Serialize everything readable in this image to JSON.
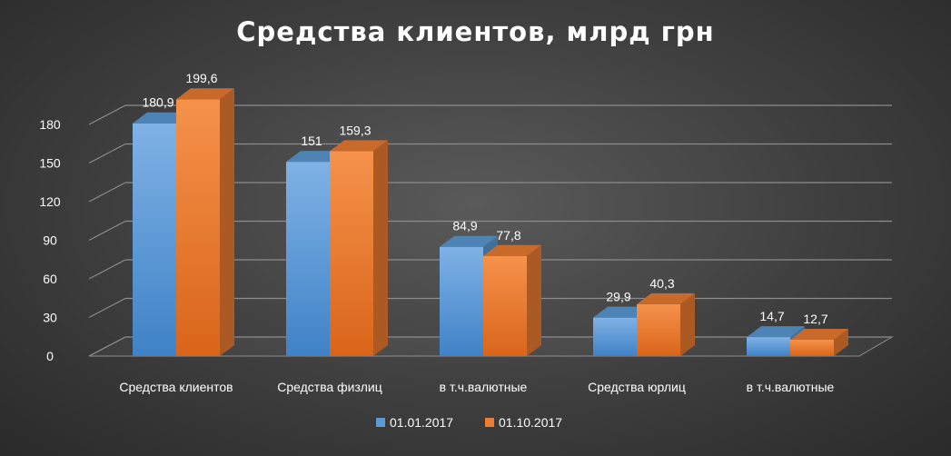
{
  "chart_data": {
    "type": "bar",
    "title": "Средства клиентов, млрд грн",
    "categories": [
      "Средства клиентов",
      "Средства физлиц",
      "в т.ч.валютные",
      "Средства юрлиц",
      "в т.ч.валютные"
    ],
    "series": [
      {
        "name": "01.01.2017",
        "values": [
          180.9,
          151,
          84.9,
          29.9,
          14.7
        ],
        "labels": [
          "180,9",
          "151",
          "84,9",
          "29,9",
          "14,7"
        ],
        "color": "#5B9BD5"
      },
      {
        "name": "01.10.2017",
        "values": [
          199.6,
          159.3,
          77.8,
          40.3,
          12.7
        ],
        "labels": [
          "199,6",
          "159,3",
          "77,8",
          "40,3",
          "12,7"
        ],
        "color": "#ED7D31"
      }
    ],
    "yticks": [
      "0",
      "30",
      "60",
      "90",
      "120",
      "150",
      "180"
    ],
    "ylim": [
      0,
      210
    ],
    "grid": true,
    "legend_position": "bottom",
    "style": "3d-clustered-column"
  }
}
